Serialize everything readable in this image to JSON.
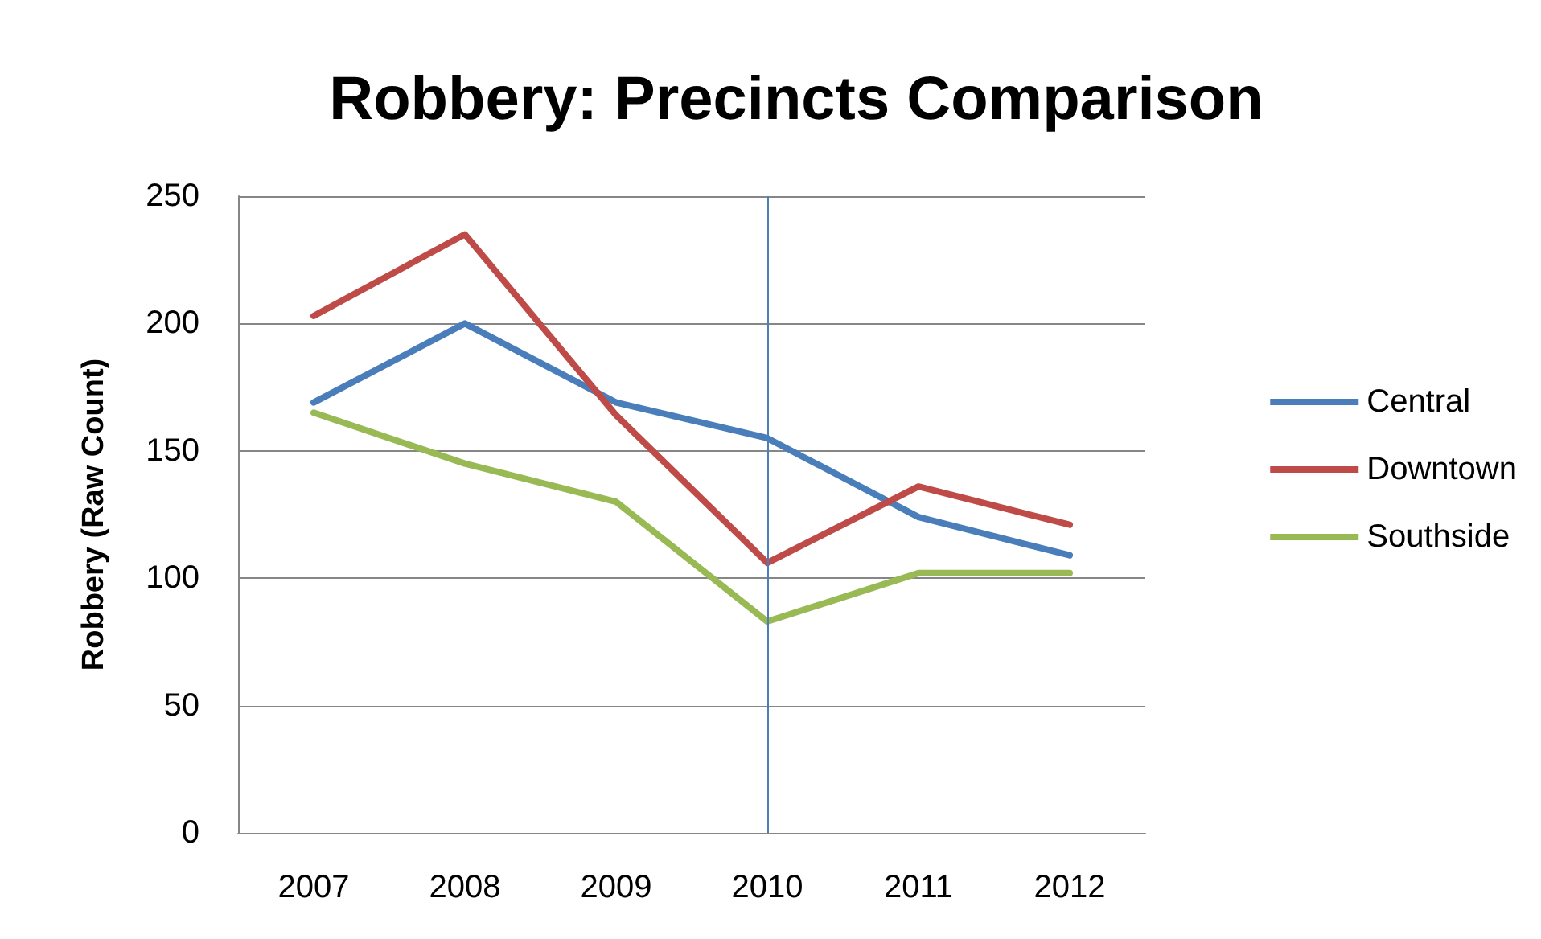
{
  "chart_data": {
    "type": "line",
    "title": "Robbery: Precincts Comparison",
    "ylabel": "Robbery (Raw Count)",
    "categories": [
      "2007",
      "2008",
      "2009",
      "2010",
      "2011",
      "2012"
    ],
    "series": [
      {
        "name": "Central",
        "color": "#4a7ebb",
        "values": [
          169,
          200,
          169,
          155,
          124,
          109
        ]
      },
      {
        "name": "Downtown",
        "color": "#be4b48",
        "values": [
          203,
          235,
          164,
          106,
          136,
          121
        ]
      },
      {
        "name": "Southside",
        "color": "#98b954",
        "values": [
          165,
          145,
          130,
          83,
          102,
          102
        ]
      }
    ],
    "ylim": [
      0,
      250
    ],
    "yticks": [
      0,
      50,
      100,
      150,
      200,
      250
    ],
    "grid": "y",
    "legend": "right",
    "marker": "none",
    "line_style": "solid",
    "ref_lines": [
      {
        "axis": "x",
        "value": "2010",
        "color": "#4a7ebb"
      }
    ]
  }
}
